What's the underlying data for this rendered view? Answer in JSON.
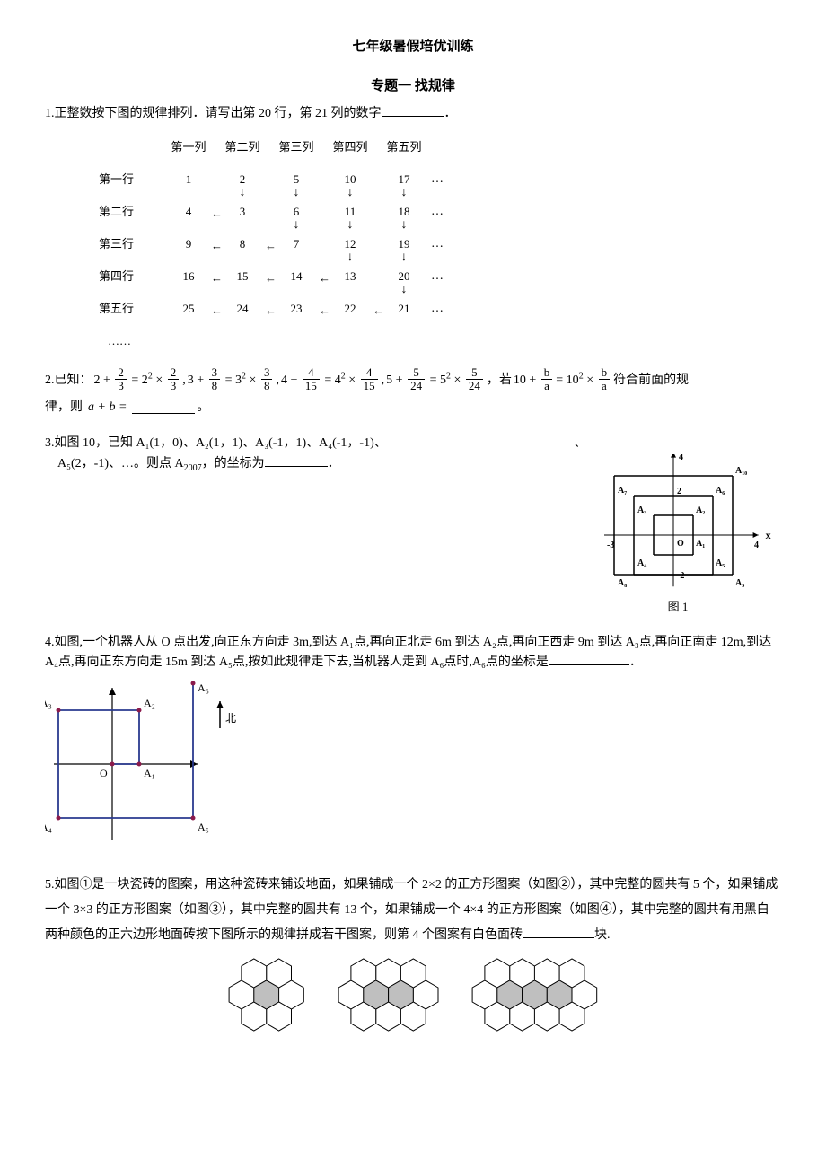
{
  "title": "七年级暑假培优训练",
  "subtitle": "专题一   找规律",
  "q1": {
    "text_a": "1.正整数按下图的规律排列．请写出第 20 行，第 21 列的数字",
    "text_b": "．",
    "col_labels": [
      "第一列",
      "第二列",
      "第三列",
      "第四列",
      "第五列"
    ],
    "row_labels": [
      "第一行",
      "第二行",
      "第三行",
      "第四行",
      "第五行"
    ],
    "cells": [
      [
        "1",
        "2",
        "5",
        "10",
        "17"
      ],
      [
        "4",
        "3",
        "6",
        "11",
        "18"
      ],
      [
        "9",
        "8",
        "7",
        "12",
        "19"
      ],
      [
        "16",
        "15",
        "14",
        "13",
        "20"
      ],
      [
        "25",
        "24",
        "23",
        "22",
        "21"
      ]
    ],
    "downs": [
      [
        0,
        1
      ],
      [
        0,
        2
      ],
      [
        0,
        3
      ],
      [
        0,
        4
      ],
      [
        1,
        2
      ],
      [
        1,
        3
      ],
      [
        1,
        4
      ],
      [
        2,
        3
      ],
      [
        2,
        4
      ],
      [
        3,
        4
      ]
    ],
    "lefts": [
      [
        1,
        0
      ],
      [
        2,
        0
      ],
      [
        2,
        1
      ],
      [
        3,
        0
      ],
      [
        3,
        1
      ],
      [
        3,
        2
      ],
      [
        4,
        0
      ],
      [
        4,
        1
      ],
      [
        4,
        2
      ],
      [
        4,
        3
      ]
    ],
    "ellipsis": "……",
    "dots": "…"
  },
  "q2": {
    "pre": "2.已知：",
    "mid": "，若",
    "mid2": "符合前面的规",
    "line2a": "律，则",
    "line2b": "a + b =",
    "line2c": "。",
    "terms": [
      {
        "base": "2",
        "fn": "2",
        "fd": "3",
        "sq": "2",
        "rn": "2",
        "rd": "3"
      },
      {
        "base": "3",
        "fn": "3",
        "fd": "8",
        "sq": "3",
        "rn": "3",
        "rd": "8"
      },
      {
        "base": "4",
        "fn": "4",
        "fd": "15",
        "sq": "4",
        "rn": "4",
        "rd": "15"
      },
      {
        "base": "5",
        "fn": "5",
        "fd": "24",
        "sq": "5",
        "rn": "5",
        "rd": "24"
      }
    ],
    "last": {
      "base": "10",
      "fn": "b",
      "fd": "a",
      "sq": "10",
      "rn": "b",
      "rd": "a"
    }
  },
  "q3": {
    "line1": "3.如图 10，已知 A₁(1，0)、A₂(1，1)、A₃(-1，1)、A₄(-1，-1)、",
    "line2a": "A₅(2，-1)、…。则点 A",
    "line2sub": "2007",
    "line2b": "，的坐标为",
    "line2c": "．",
    "tick_back": "、",
    "caption": "图 1",
    "axes": {
      "xmin": -3.5,
      "xmax": 4.5,
      "ymin": -2.8,
      "ymax": 4.5,
      "xticks": [
        "-3",
        "",
        "",
        "",
        "",
        "4"
      ],
      "yticks": [
        "-2",
        "",
        "",
        "",
        "4"
      ],
      "labels": {
        "A1": "A₁",
        "A2": "A₂",
        "A3": "A₃",
        "A4": "A₄",
        "A5": "A₅",
        "A6": "A₆",
        "A7": "A₇",
        "A8": "A₈",
        "A9": "A₉",
        "A10": "A₁₀",
        "O": "O"
      }
    }
  },
  "q4": {
    "text": "4.如图,一个机器人从 O 点出发,向正东方向走 3m,到达 A₁点,再向正北走 6m 到达 A₂点,再向正西走 9m 到达 A₃点,再向正南走 12m,到达 A₄点,再向正东方向走 15m 到达 A₅点,按如此规律走下去,当机器人走到 A₆点时,A₆点的坐标是",
    "period": "．",
    "labels": {
      "O": "O",
      "A1": "A₁",
      "A2": "A₂",
      "A3": "A₃",
      "A4": "A₄",
      "A5": "A₅",
      "A6": "A₆",
      "north": "北"
    }
  },
  "q5": {
    "text": "5.如图①是一块瓷砖的图案，用这种瓷砖来铺设地面，如果铺成一个 2×2 的正方形图案（如图②），其中完整的圆共有 5 个，如果铺成一个 3×3 的正方形图案（如图③），其中完整的圆共有 13 个，如果铺成一个 4×4 的正方形图案（如图④），其中完整的圆共有用黑白两种颜色的正六边形地面砖按下图所示的规律拼成若干图案，则第 4 个图案有白色面砖",
    "tail": "块.",
    "hex": {
      "fill": "#bfbfbf",
      "stroke": "#000",
      "bg": "#fff",
      "figs": [
        1,
        2,
        3
      ]
    }
  }
}
